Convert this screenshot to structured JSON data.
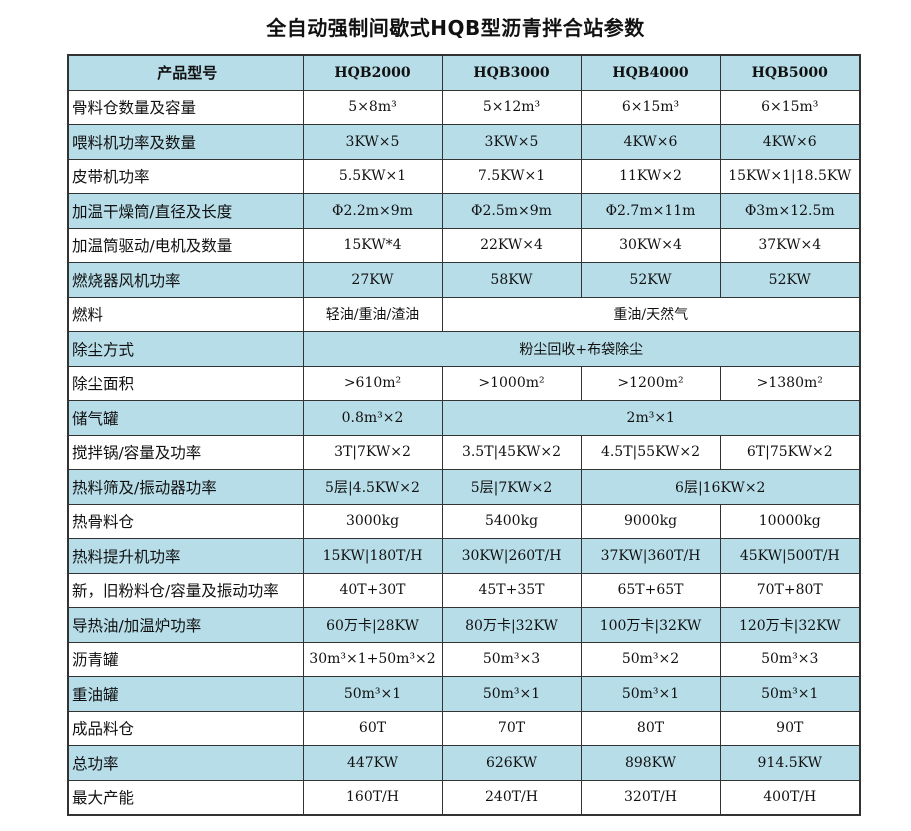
{
  "title": "全自动强制间歇式HQB型沥青拌合站参数",
  "header": [
    "产品型号",
    "HQB2000",
    "HQB3000",
    "HQB4000",
    "HQB5000"
  ],
  "rows": [
    {
      "label": "骨料仓数量及容量",
      "cells": [
        {
          "text": "5×8m³"
        },
        {
          "text": "5×12m³"
        },
        {
          "text": "6×15m³"
        },
        {
          "text": "6×15m³"
        }
      ]
    },
    {
      "label": "喂料机功率及数量",
      "cells": [
        {
          "text": "3KW×5"
        },
        {
          "text": "3KW×5"
        },
        {
          "text": "4KW×6"
        },
        {
          "text": "4KW×6"
        }
      ]
    },
    {
      "label": "皮带机功率",
      "cells": [
        {
          "text": "5.5KW×1"
        },
        {
          "text": "7.5KW×1"
        },
        {
          "text": "11KW×2"
        },
        {
          "text": "15KW×1|18.5KW"
        }
      ]
    },
    {
      "label": "加温干燥筒/直径及长度",
      "cells": [
        {
          "text": "Φ2.2m×9m"
        },
        {
          "text": "Φ2.5m×9m"
        },
        {
          "text": "Φ2.7m×11m"
        },
        {
          "text": "Φ3m×12.5m"
        }
      ]
    },
    {
      "label": "加温筒驱动/电机及数量",
      "cells": [
        {
          "text": "15KW*4"
        },
        {
          "text": "22KW×4"
        },
        {
          "text": "30KW×4"
        },
        {
          "text": "37KW×4"
        }
      ]
    },
    {
      "label": "燃烧器风机功率",
      "cells": [
        {
          "text": "27KW"
        },
        {
          "text": "58KW"
        },
        {
          "text": "52KW"
        },
        {
          "text": "52KW"
        }
      ]
    },
    {
      "label": "燃料",
      "cells": [
        {
          "text": "轻油/重油/渣油"
        },
        {
          "text": "重油/天然气",
          "span": 3
        }
      ]
    },
    {
      "label": "除尘方式",
      "cells": [
        {
          "text": "粉尘回收+布袋除尘",
          "span": 4
        }
      ]
    },
    {
      "label": "除尘面积",
      "cells": [
        {
          "text": ">610m²"
        },
        {
          "text": ">1000m²"
        },
        {
          "text": ">1200m²"
        },
        {
          "text": ">1380m²"
        }
      ]
    },
    {
      "label": "储气罐",
      "cells": [
        {
          "text": "0.8m³×2"
        },
        {
          "text": "2m³×1",
          "span": 3
        }
      ]
    },
    {
      "label": "搅拌锅/容量及功率",
      "cells": [
        {
          "text": "3T|7KW×2"
        },
        {
          "text": "3.5T|45KW×2"
        },
        {
          "text": "4.5T|55KW×2"
        },
        {
          "text": "6T|75KW×2"
        }
      ]
    },
    {
      "label": "热料筛及/振动器功率",
      "cells": [
        {
          "text": "5层|4.5KW×2"
        },
        {
          "text": "5层|7KW×2"
        },
        {
          "text": "6层|16KW×2",
          "span": 2
        }
      ]
    },
    {
      "label": "热骨料仓",
      "cells": [
        {
          "text": "3000kg"
        },
        {
          "text": "5400kg"
        },
        {
          "text": "9000kg"
        },
        {
          "text": "10000kg"
        }
      ]
    },
    {
      "label": "热料提升机功率",
      "cells": [
        {
          "text": "15KW|180T/H"
        },
        {
          "text": "30KW|260T/H"
        },
        {
          "text": "37KW|360T/H"
        },
        {
          "text": "45KW|500T/H"
        }
      ]
    },
    {
      "label": "新，旧粉料仓/容量及振动功率",
      "cells": [
        {
          "text": "40T+30T"
        },
        {
          "text": "45T+35T"
        },
        {
          "text": "65T+65T"
        },
        {
          "text": "70T+80T"
        }
      ]
    },
    {
      "label": "导热油/加温炉功率",
      "cells": [
        {
          "text": "60万卡|28KW"
        },
        {
          "text": "80万卡|32KW"
        },
        {
          "text": "100万卡|32KW"
        },
        {
          "text": "120万卡|32KW"
        }
      ]
    },
    {
      "label": "沥青罐",
      "cells": [
        {
          "text": "30m³×1+50m³×2"
        },
        {
          "text": "50m³×3"
        },
        {
          "text": "50m³×2"
        },
        {
          "text": "50m³×3"
        }
      ]
    },
    {
      "label": "重油罐",
      "cells": [
        {
          "text": "50m³×1"
        },
        {
          "text": "50m³×1"
        },
        {
          "text": "50m³×1"
        },
        {
          "text": "50m³×1"
        }
      ]
    },
    {
      "label": "成品料仓",
      "cells": [
        {
          "text": "60T"
        },
        {
          "text": "70T"
        },
        {
          "text": "80T"
        },
        {
          "text": "90T"
        }
      ]
    },
    {
      "label": "总功率",
      "cells": [
        {
          "text": "447KW"
        },
        {
          "text": "626KW"
        },
        {
          "text": "898KW"
        },
        {
          "text": "914.5KW"
        }
      ]
    },
    {
      "label": "最大产能",
      "cells": [
        {
          "text": "160T/H"
        },
        {
          "text": "240T/H"
        },
        {
          "text": "320T/H"
        },
        {
          "text": "400T/H"
        }
      ]
    }
  ],
  "colors": {
    "band": "#b7dde8",
    "plain": "#ffffff",
    "border": "#333333"
  }
}
